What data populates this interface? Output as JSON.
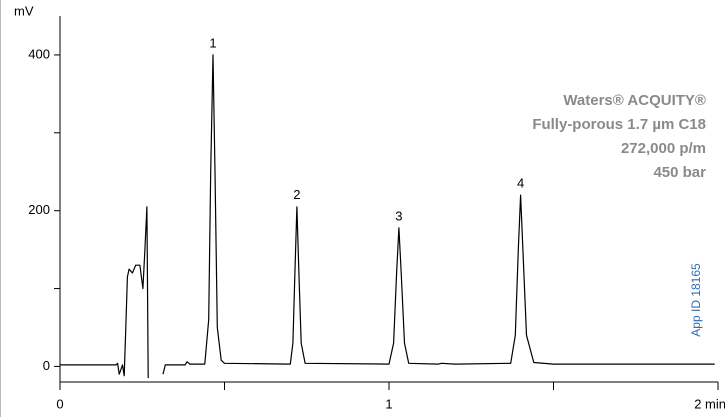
{
  "chart_data": {
    "type": "line",
    "y_label": "mV",
    "x": [
      0,
      0.1,
      0.17,
      0.175,
      0.18,
      0.19,
      0.195,
      0.2,
      0.205,
      0.21,
      0.22,
      0.23,
      0.243,
      0.252,
      0.258,
      0.264,
      0.268,
      null,
      0.313,
      0.32,
      0.38,
      0.386,
      0.395,
      0.44,
      0.452,
      0.458,
      0.465,
      0.471,
      0.478,
      0.49,
      0.5,
      0.7,
      0.708,
      0.714,
      0.72,
      0.726,
      0.733,
      0.745,
      1.0,
      1.014,
      1.023,
      1.03,
      1.037,
      1.047,
      1.06,
      1.15,
      1.16,
      1.2,
      1.37,
      1.384,
      1.393,
      1.4,
      1.407,
      1.418,
      1.44,
      1.5,
      1.99
    ],
    "series": [
      {
        "name": "trace",
        "color": "#000000",
        "values": [
          2,
          2,
          2,
          4,
          -10,
          2,
          -12,
          50,
          115,
          125,
          120,
          130,
          130,
          100,
          150,
          205,
          -15,
          null,
          -10,
          2,
          2,
          6,
          3,
          3,
          60,
          250,
          400,
          250,
          50,
          8,
          4,
          3,
          30,
          120,
          205,
          120,
          30,
          4,
          3,
          30,
          120,
          178,
          120,
          30,
          4,
          3,
          4,
          3,
          4,
          40,
          150,
          220,
          150,
          40,
          5,
          3,
          3
        ]
      }
    ],
    "xlim": [
      0,
      2
    ],
    "ylim": [
      -20,
      450
    ],
    "xticks": [
      0,
      1,
      {
        "value": 2,
        "label": "2 min"
      }
    ],
    "yticks": [
      0,
      200,
      400
    ],
    "annotations": [
      {
        "text": "1",
        "x": 0.465,
        "y": 400
      },
      {
        "text": "2",
        "x": 0.72,
        "y": 205
      },
      {
        "text": "3",
        "x": 1.03,
        "y": 178
      },
      {
        "text": "4",
        "x": 1.4,
        "y": 220
      }
    ],
    "info": [
      "Waters® ACQUITY®",
      "Fully-porous 1.7 µm C18",
      "272,000 p/m",
      "450 bar"
    ],
    "app_id": "App ID 18165"
  }
}
